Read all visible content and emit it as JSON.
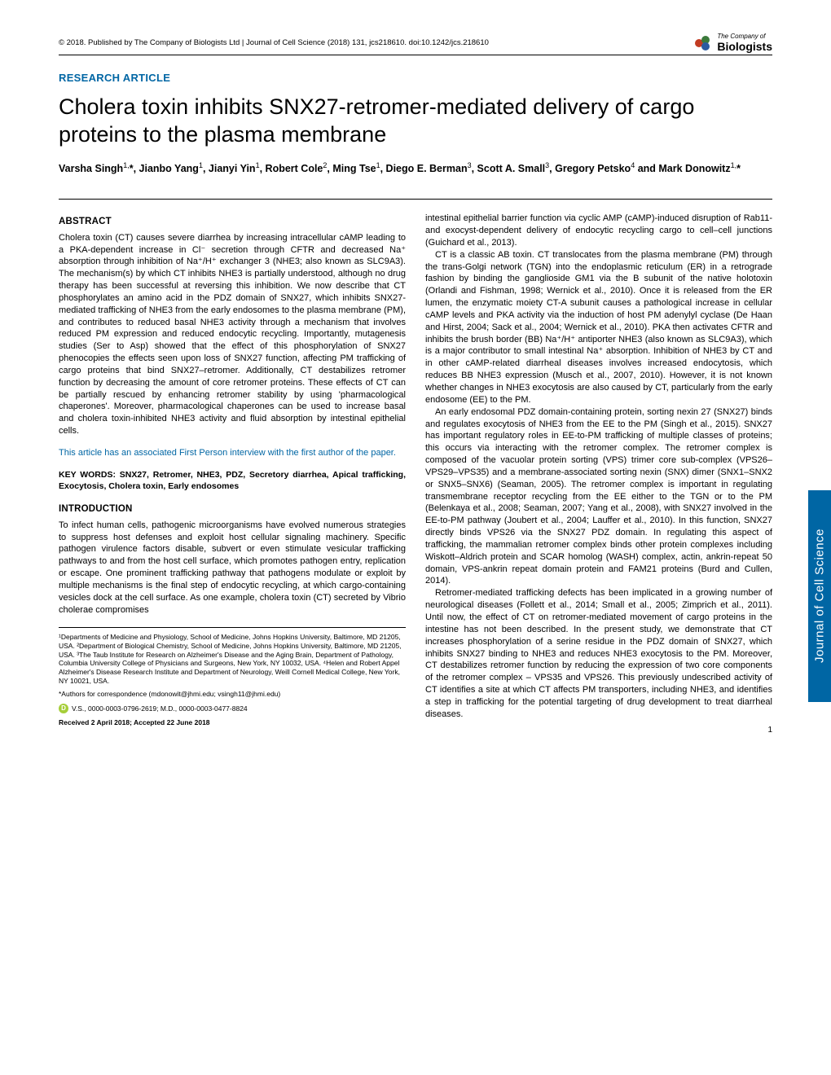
{
  "header": {
    "copyright": "© 2018. Published by The Company of Biologists Ltd | Journal of Cell Science (2018) 131, jcs218610. doi:10.1242/jcs.218610",
    "publisher_small": "The Company of",
    "publisher_big": "Biologists"
  },
  "article_type": "RESEARCH ARTICLE",
  "title": "Cholera toxin inhibits SNX27-retromer-mediated delivery of cargo proteins to the plasma membrane",
  "authors_html": "Varsha Singh<sup>1,</sup>*, Jianbo Yang<sup>1</sup>, Jianyi Yin<sup>1</sup>, Robert Cole<sup>2</sup>, Ming Tse<sup>1</sup>, Diego E. Berman<sup>3</sup>, Scott A. Small<sup>3</sup>, Gregory Petsko<sup>4</sup> and Mark Donowitz<sup>1,</sup>*",
  "abstract": {
    "heading": "ABSTRACT",
    "body": "Cholera toxin (CT) causes severe diarrhea by increasing intracellular cAMP leading to a PKA-dependent increase in Cl⁻ secretion through CFTR and decreased Na⁺ absorption through inhibition of Na⁺/H⁺ exchanger 3 (NHE3; also known as SLC9A3). The mechanism(s) by which CT inhibits NHE3 is partially understood, although no drug therapy has been successful at reversing this inhibition. We now describe that CT phosphorylates an amino acid in the PDZ domain of SNX27, which inhibits SNX27-mediated trafficking of NHE3 from the early endosomes to the plasma membrane (PM), and contributes to reduced basal NHE3 activity through a mechanism that involves reduced PM expression and reduced endocytic recycling. Importantly, mutagenesis studies (Ser to Asp) showed that the effect of this phosphorylation of SNX27 phenocopies the effects seen upon loss of SNX27 function, affecting PM trafficking of cargo proteins that bind SNX27–retromer. Additionally, CT destabilizes retromer function by decreasing the amount of core retromer proteins. These effects of CT can be partially rescued by enhancing retromer stability by using 'pharmacological chaperones'. Moreover, pharmacological chaperones can be used to increase basal and cholera toxin-inhibited NHE3 activity and fluid absorption by intestinal epithelial cells."
  },
  "first_person": "This article has an associated First Person interview with the first author of the paper.",
  "keywords": "KEY WORDS: SNX27, Retromer, NHE3, PDZ, Secretory diarrhea, Apical trafficking, Exocytosis, Cholera toxin, Early endosomes",
  "intro": {
    "heading": "INTRODUCTION",
    "p1": "To infect human cells, pathogenic microorganisms have evolved numerous strategies to suppress host defenses and exploit host cellular signaling machinery. Specific pathogen virulence factors disable, subvert or even stimulate vesicular trafficking pathways to and from the host cell surface, which promotes pathogen entry, replication or escape. One prominent trafficking pathway that pathogens modulate or exploit by multiple mechanisms is the final step of endocytic recycling, at which cargo-containing vesicles dock at the cell surface. As one example, cholera toxin (CT) secreted by Vibrio cholerae compromises",
    "p1b": "intestinal epithelial barrier function via cyclic AMP (cAMP)-induced disruption of Rab11- and exocyst-dependent delivery of endocytic recycling cargo to cell–cell junctions (Guichard et al., 2013).",
    "p2": "CT is a classic AB toxin. CT translocates from the plasma membrane (PM) through the trans-Golgi network (TGN) into the endoplasmic reticulum (ER) in a retrograde fashion by binding the ganglioside GM1 via the B subunit of the native holotoxin (Orlandi and Fishman, 1998; Wernick et al., 2010). Once it is released from the ER lumen, the enzymatic moiety CT-A subunit causes a pathological increase in cellular cAMP levels and PKA activity via the induction of host PM adenylyl cyclase (De Haan and Hirst, 2004; Sack et al., 2004; Wernick et al., 2010). PKA then activates CFTR and inhibits the brush border (BB) Na⁺/H⁺ antiporter NHE3 (also known as SLC9A3), which is a major contributor to small intestinal Na⁺ absorption. Inhibition of NHE3 by CT and in other cAMP-related diarrheal diseases involves increased endocytosis, which reduces BB NHE3 expression (Musch et al., 2007, 2010). However, it is not known whether changes in NHE3 exocytosis are also caused by CT, particularly from the early endosome (EE) to the PM.",
    "p3": "An early endosomal PDZ domain-containing protein, sorting nexin 27 (SNX27) binds and regulates exocytosis of NHE3 from the EE to the PM (Singh et al., 2015). SNX27 has important regulatory roles in EE-to-PM trafficking of multiple classes of proteins; this occurs via interacting with the retromer complex. The retromer complex is composed of the vacuolar protein sorting (VPS) trimer core sub-complex (VPS26–VPS29–VPS35) and a membrane-associated sorting nexin (SNX) dimer (SNX1–SNX2 or SNX5–SNX6) (Seaman, 2005). The retromer complex is important in regulating transmembrane receptor recycling from the EE either to the TGN or to the PM (Belenkaya et al., 2008; Seaman, 2007; Yang et al., 2008), with SNX27 involved in the EE-to-PM pathway (Joubert et al., 2004; Lauffer et al., 2010). In this function, SNX27 directly binds VPS26 via the SNX27 PDZ domain. In regulating this aspect of trafficking, the mammalian retromer complex binds other protein complexes including Wiskott–Aldrich protein and SCAR homolog (WASH) complex, actin, ankrin-repeat 50 domain, VPS-ankrin repeat domain protein and FAM21 proteins (Burd and Cullen, 2014).",
    "p4": "Retromer-mediated trafficking defects has been implicated in a growing number of neurological diseases (Follett et al., 2014; Small et al., 2005; Zimprich et al., 2011). Until now, the effect of CT on retromer-mediated movement of cargo proteins in the intestine has not been described. In the present study, we demonstrate that CT increases phosphorylation of a serine residue in the PDZ domain of SNX27, which inhibits SNX27 binding to NHE3 and reduces NHE3 exocytosis to the PM. Moreover, CT destabilizes retromer function by reducing the expression of two core components of the retromer complex – VPS35 and VPS26. This previously undescribed activity of CT identifies a site at which CT affects PM transporters, including NHE3, and identifies a step in trafficking for the potential targeting of drug development to treat diarrheal diseases."
  },
  "affiliations": "¹Departments of Medicine and Physiology, School of Medicine, Johns Hopkins University, Baltimore, MD 21205, USA. ²Department of Biological Chemistry, School of Medicine, Johns Hopkins University, Baltimore, MD 21205, USA. ³The Taub Institute for Research on Alzheimer's Disease and the Aging Brain, Department of Pathology, Columbia University College of Physicians and Surgeons, New York, NY 10032, USA. ⁴Helen and Robert Appel Alzheimer's Disease Research Institute and Department of Neurology, Weill Cornell Medical College, New York, NY 10021, USA.",
  "corresponding": "*Authors for correspondence (mdonowit@jhmi.edu; vsingh11@jhmi.edu)",
  "orcid": "V.S., 0000-0003-0796-2619; M.D., 0000-0003-0477-8824",
  "received": "Received 2 April 2018; Accepted 22 June 2018",
  "side_tab": "Journal of Cell Science",
  "page_number": "1",
  "colors": {
    "accent": "#0066a4",
    "orcid": "#a6ce39",
    "text": "#000000",
    "background": "#ffffff"
  }
}
